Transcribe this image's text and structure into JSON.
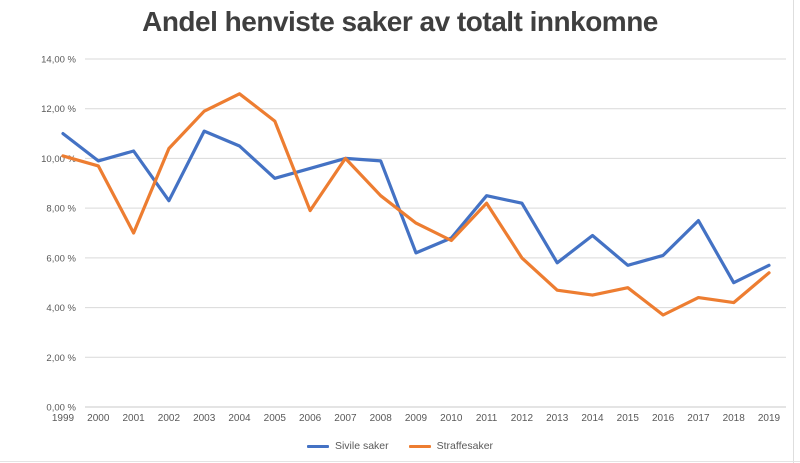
{
  "title": "Andel henviste saker av totalt innkomne",
  "chart_data": {
    "type": "line",
    "categories": [
      "1999",
      "2000",
      "2001",
      "2002",
      "2003",
      "2004",
      "2005",
      "2006",
      "2007",
      "2008",
      "2009",
      "2010",
      "2011",
      "2012",
      "2013",
      "2014",
      "2015",
      "2016",
      "2017",
      "2018",
      "2019"
    ],
    "series": [
      {
        "name": "Sivile saker",
        "color": "#4472C4",
        "values": [
          11.0,
          9.9,
          10.3,
          8.3,
          11.1,
          10.5,
          9.2,
          9.6,
          10.0,
          9.9,
          6.2,
          6.8,
          8.5,
          8.2,
          5.8,
          6.9,
          5.7,
          6.1,
          7.5,
          5.0,
          5.7
        ]
      },
      {
        "name": "Straffesaker",
        "color": "#ED7D31",
        "values": [
          10.1,
          9.7,
          7.0,
          10.4,
          11.9,
          12.6,
          11.5,
          7.9,
          10.0,
          8.5,
          7.4,
          6.7,
          8.2,
          6.0,
          4.7,
          4.5,
          4.8,
          3.7,
          4.4,
          4.2,
          5.4
        ]
      }
    ],
    "title": "Andel henviste saker av totalt innkomne",
    "xlabel": "",
    "ylabel": "",
    "ylim": [
      0,
      14
    ],
    "ytick_step": 2,
    "ytick_labels": [
      "0,00 %",
      "2,00 %",
      "4,00 %",
      "6,00 %",
      "8,00 %",
      "10,00 %",
      "12,00 %",
      "14,00 %"
    ],
    "grid": "horizontal",
    "legend_position": "bottom-center"
  },
  "colors": {
    "title_text": "#3f3f3f",
    "axis_text": "#595959",
    "gridline": "#d9d9d9",
    "axis_line": "#c9c9c9",
    "series_blue": "#4472C4",
    "series_orange": "#ED7D31"
  }
}
